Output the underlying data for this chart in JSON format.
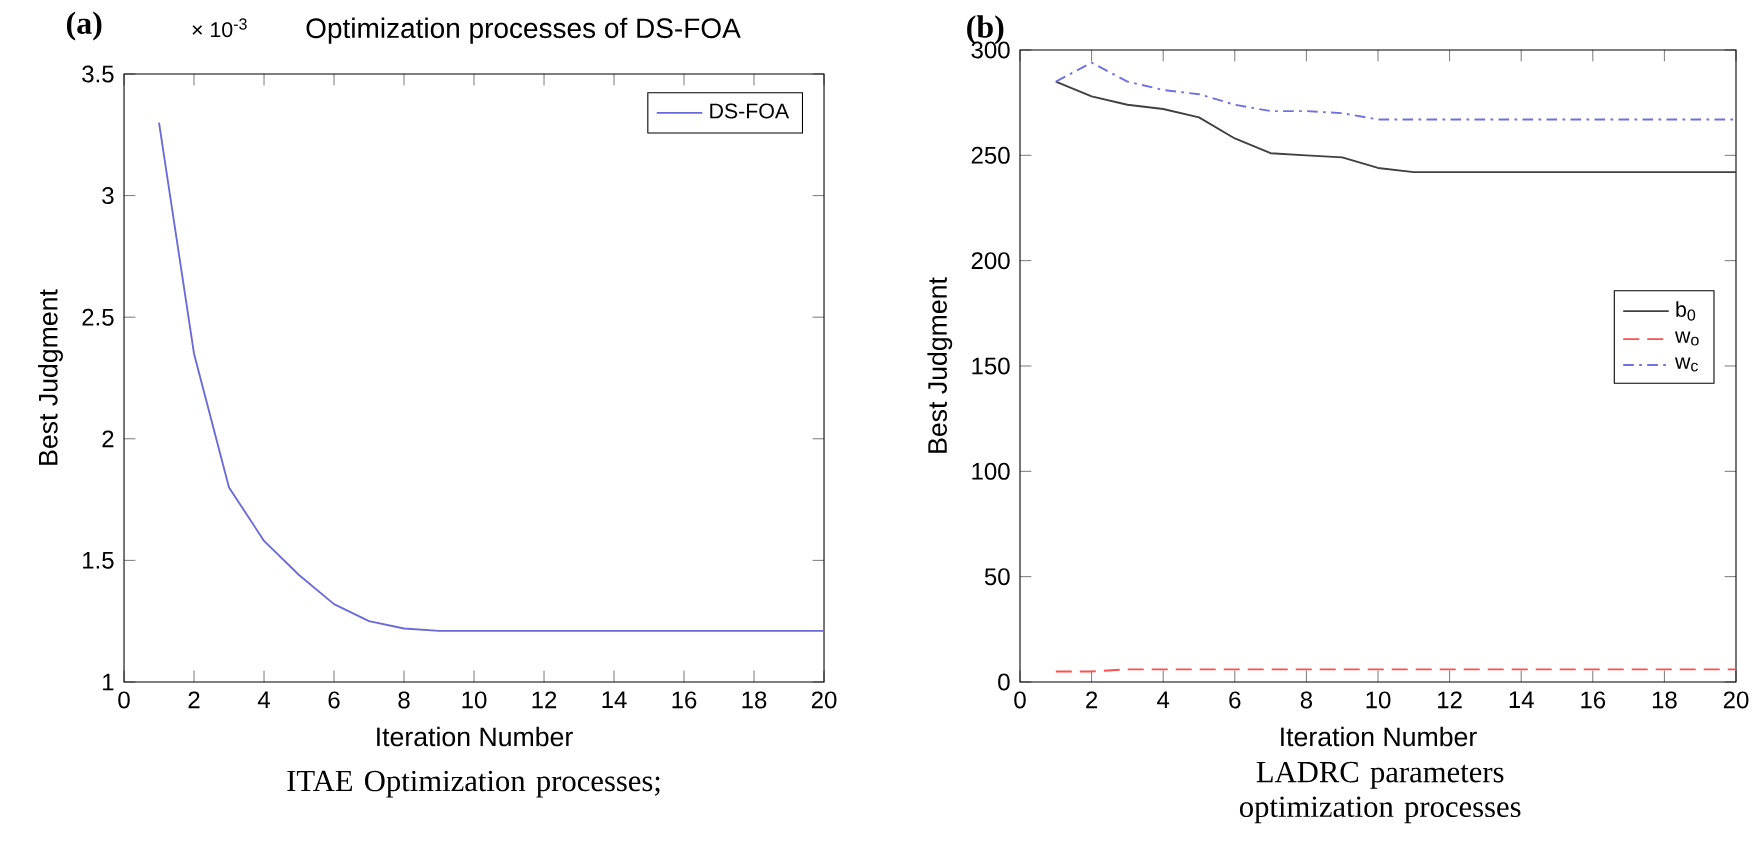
{
  "chart_data": [
    {
      "type": "line",
      "title": "Optimization processes of DS-FOA",
      "xlabel": "Iteration Number",
      "ylabel": "Best Judgment",
      "annotations": [
        "(a)",
        "× 10$^{-3}$",
        "ITAE Optimization processes;"
      ],
      "x": [
        1,
        2,
        3,
        4,
        5,
        6,
        7,
        8,
        9,
        10,
        11,
        12,
        13,
        14,
        15,
        16,
        17,
        18,
        19,
        20
      ],
      "series": [
        {
          "name": "DS-FOA",
          "color": "#6a6ad8",
          "line_style": "solid",
          "values": [
            3.3,
            2.35,
            1.8,
            1.58,
            1.44,
            1.32,
            1.25,
            1.22,
            1.21,
            1.21,
            1.21,
            1.21,
            1.21,
            1.21,
            1.21,
            1.21,
            1.21,
            1.21,
            1.21,
            1.21
          ]
        }
      ],
      "xlim": [
        0,
        20
      ],
      "xticks": [
        0,
        2,
        4,
        6,
        8,
        10,
        12,
        14,
        16,
        18,
        20
      ],
      "ylim": [
        1,
        3.5
      ],
      "yticks": [
        1,
        1.5,
        2,
        2.5,
        3,
        3.5
      ],
      "grid": false,
      "legend": "top right"
    },
    {
      "type": "line",
      "xlabel": "Iteration Number",
      "ylabel": "Best Judgment",
      "annotations": [
        "(b)",
        "LADRC parameters optimization processes"
      ],
      "x": [
        1,
        2,
        3,
        4,
        5,
        6,
        7,
        8,
        9,
        10,
        11,
        12,
        13,
        14,
        15,
        16,
        17,
        18,
        19,
        20
      ],
      "series": [
        {
          "name": "b$_{0}$",
          "color": "#404040",
          "line_style": "solid",
          "values": [
            285,
            278,
            274,
            272,
            268,
            258,
            251,
            250,
            249,
            244,
            242,
            242,
            242,
            242,
            242,
            242,
            242,
            242,
            242,
            242
          ]
        },
        {
          "name": "w$_{o}$",
          "color": "#ff5050",
          "line_style": "dashed",
          "values": [
            5,
            5,
            6,
            6,
            6,
            6,
            6,
            6,
            6,
            6,
            6,
            6,
            6,
            6,
            6,
            6,
            6,
            6,
            6,
            6
          ]
        },
        {
          "name": "w$_{c}$",
          "color": "#7070e0",
          "line_style": "dashdot",
          "values": [
            285,
            294,
            285,
            281,
            279,
            274,
            271,
            271,
            270,
            267,
            267,
            267,
            267,
            267,
            267,
            267,
            267,
            267,
            267,
            267
          ]
        }
      ],
      "xlim": [
        0,
        20
      ],
      "xticks": [
        0,
        2,
        4,
        6,
        8,
        10,
        12,
        14,
        16,
        18,
        20
      ],
      "ylim": [
        0,
        300
      ],
      "yticks": [
        0,
        50,
        100,
        150,
        200,
        250,
        300
      ],
      "grid": false,
      "legend": "right"
    }
  ]
}
